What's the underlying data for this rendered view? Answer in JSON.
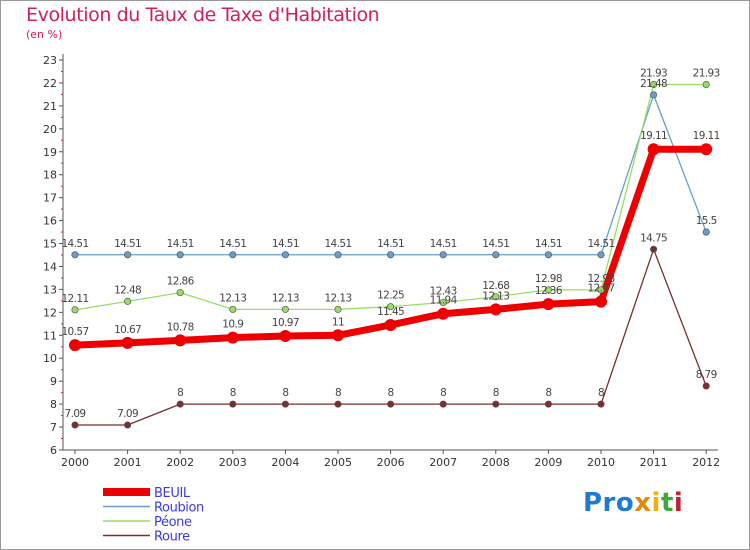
{
  "chart_data": {
    "type": "line",
    "title": "Evolution du Taux de Taxe d'Habitation",
    "ylabel": "(en %)",
    "xlabel": "",
    "x": [
      "2000",
      "2001",
      "2002",
      "2003",
      "2004",
      "2005",
      "2006",
      "2007",
      "2008",
      "2009",
      "2010",
      "2011",
      "2012"
    ],
    "yticks": [
      "6",
      "7",
      "8",
      "9",
      "10",
      "11",
      "12",
      "13",
      "14",
      "15",
      "16",
      "17",
      "18",
      "19",
      "20",
      "21",
      "22",
      "23"
    ],
    "ylim": [
      6,
      23
    ],
    "grid": false,
    "legend_position": "bottom-left",
    "series": [
      {
        "name": "BEUIL",
        "color": "#ee0000",
        "values": [
          10.57,
          10.67,
          10.78,
          10.9,
          10.97,
          11,
          11.45,
          11.94,
          12.13,
          12.36,
          12.47,
          19.11,
          19.11
        ],
        "labels": [
          "10.57",
          "10.67",
          "10.78",
          "10.9",
          "10.97",
          "11",
          "11.45",
          "11.94",
          "12.13",
          "12.36",
          "12.47",
          "19.11",
          "19.11"
        ]
      },
      {
        "name": "Roubion",
        "color": "#6a9ec8",
        "values": [
          14.51,
          14.51,
          14.51,
          14.51,
          14.51,
          14.51,
          14.51,
          14.51,
          14.51,
          14.51,
          14.51,
          21.48,
          15.5
        ],
        "labels": [
          "14.51",
          "14.51",
          "14.51",
          "14.51",
          "14.51",
          "14.51",
          "14.51",
          "14.51",
          "14.51",
          "14.51",
          "14.51",
          "21.48",
          "15.5"
        ]
      },
      {
        "name": "Péone",
        "color": "#99dd66",
        "values": [
          12.11,
          12.48,
          12.86,
          12.13,
          12.13,
          12.13,
          12.25,
          12.43,
          12.68,
          12.98,
          12.98,
          21.93,
          21.93
        ],
        "labels": [
          "12.11",
          "12.48",
          "12.86",
          "12.13",
          "12.13",
          "12.13",
          "12.25",
          "12.43",
          "12.68",
          "12.98",
          "12.98",
          "21.93",
          "21.93"
        ]
      },
      {
        "name": "Roure",
        "color": "#7a2e2e",
        "values": [
          7.09,
          7.09,
          8,
          8,
          8,
          8,
          8,
          8,
          8,
          8,
          8,
          14.75,
          8.79
        ],
        "labels": [
          "7.09",
          "7.09",
          "8",
          "8",
          "8",
          "8",
          "8",
          "8",
          "8",
          "8",
          "8",
          "14.75",
          "8.79"
        ]
      }
    ]
  },
  "logo": {
    "part1": "Pro",
    "part2": "x",
    "part3": "i",
    "part4": "t",
    "part5": "i"
  }
}
